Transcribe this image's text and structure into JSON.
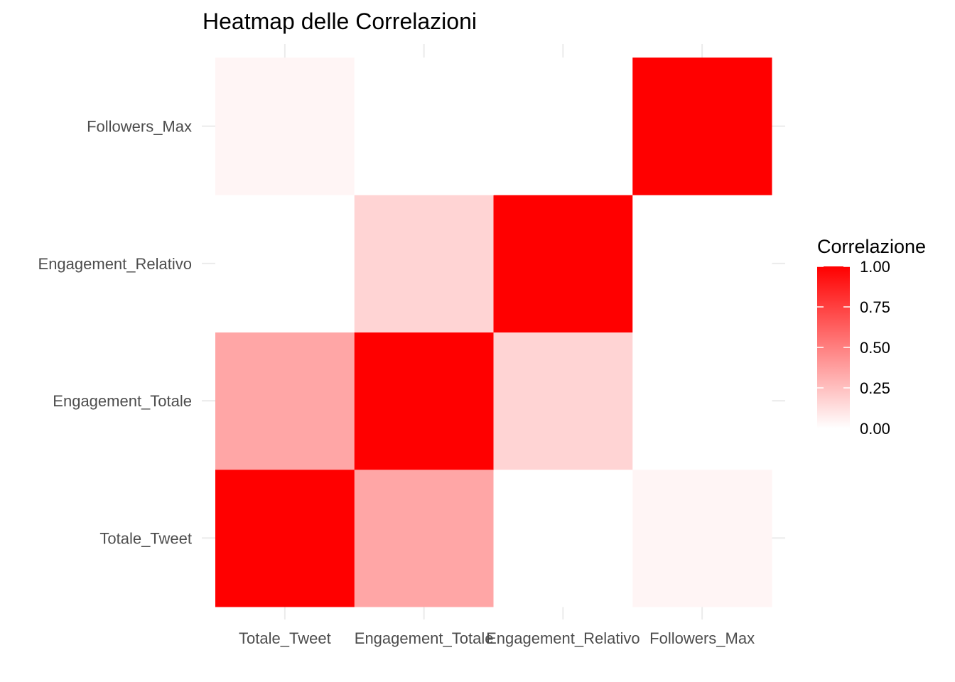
{
  "chart_data": {
    "type": "heatmap",
    "title": "Heatmap delle Correlazioni",
    "x_categories": [
      "Totale_Tweet",
      "Engagement_Totale",
      "Engagement_Relativo",
      "Followers_Max"
    ],
    "y_categories": [
      "Totale_Tweet",
      "Engagement_Totale",
      "Engagement_Relativo",
      "Followers_Max"
    ],
    "values": [
      [
        1.0,
        0.35,
        0.0,
        0.04
      ],
      [
        0.35,
        1.0,
        0.17,
        0.0
      ],
      [
        0.0,
        0.17,
        1.0,
        0.0
      ],
      [
        0.04,
        0.0,
        0.0,
        1.0
      ]
    ],
    "legend": {
      "title": "Correlazione",
      "ticks": [
        "0.00",
        "0.25",
        "0.50",
        "0.75",
        "1.00"
      ],
      "tick_values": [
        0,
        0.25,
        0.5,
        0.75,
        1.0
      ],
      "range": [
        0,
        1
      ],
      "placement": "right"
    },
    "colors": {
      "low": "#ffffff",
      "high": "#ff0000"
    },
    "grid": true
  }
}
